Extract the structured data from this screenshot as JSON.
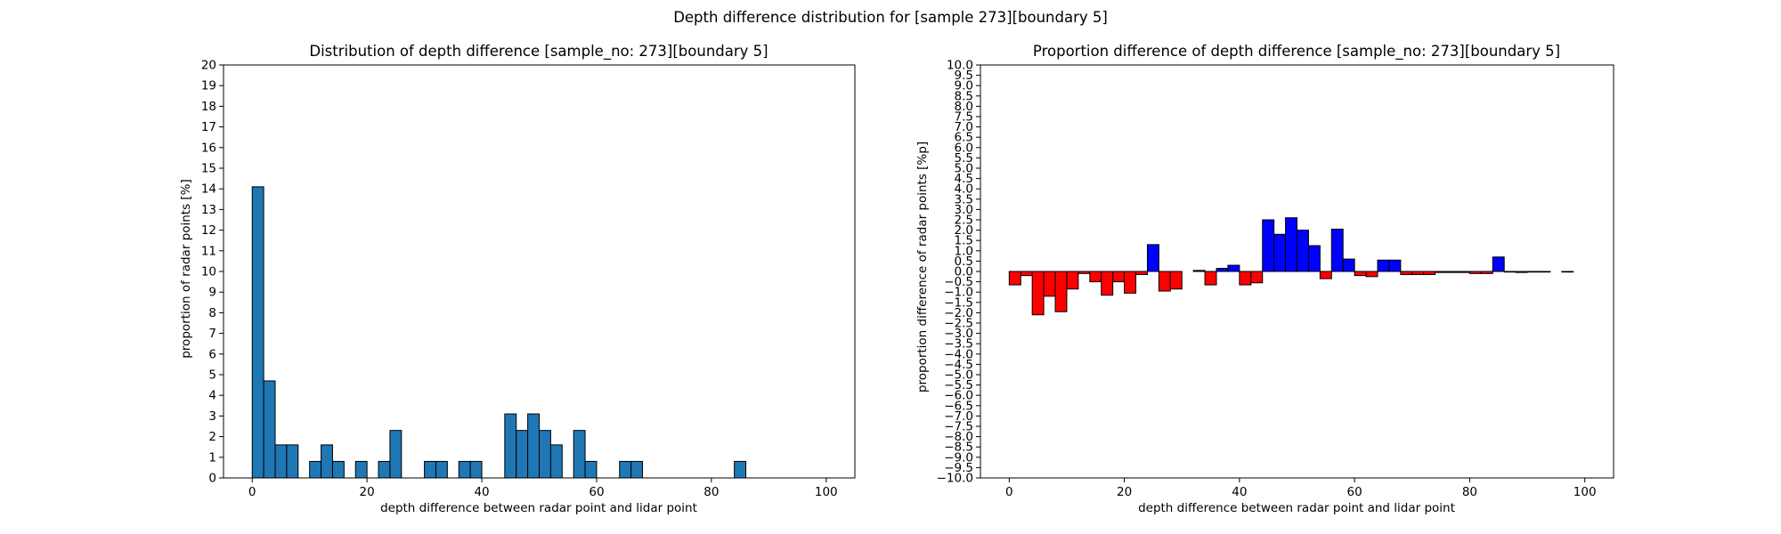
{
  "figure": {
    "suptitle": "Depth difference distribution for [sample 273][boundary 5]"
  },
  "chart_data": [
    {
      "type": "bar",
      "title": "Distribution of depth difference [sample_no: 273][boundary 5]",
      "xlabel": "depth difference between radar point and lidar point",
      "ylabel": "proportion of radar points [%]",
      "xlim": [
        -5,
        105
      ],
      "ylim": [
        0,
        20
      ],
      "x_ticks": [
        0,
        20,
        40,
        60,
        80,
        100
      ],
      "y_ticks": [
        0,
        1,
        2,
        3,
        4,
        5,
        6,
        7,
        8,
        9,
        10,
        11,
        12,
        13,
        14,
        15,
        16,
        17,
        18,
        19,
        20
      ],
      "bin_width": 2,
      "bin_start": 0,
      "bar_color": "#1f77b4",
      "values": [
        14.1,
        4.7,
        1.6,
        1.6,
        0,
        0.8,
        1.6,
        0.8,
        0,
        0.8,
        0,
        0.8,
        2.3,
        0,
        0,
        0.8,
        0.8,
        0,
        0.8,
        0.8,
        0,
        0,
        3.1,
        2.3,
        3.1,
        2.3,
        1.6,
        0,
        2.3,
        0.8,
        0,
        0,
        0.8,
        0.8,
        0,
        0,
        0,
        0,
        0,
        0,
        0,
        0,
        0.8,
        0,
        0,
        0,
        0,
        0,
        0,
        0
      ]
    },
    {
      "type": "bar",
      "title": "Proportion difference of depth difference [sample_no: 273][boundary 5]",
      "xlabel": "depth difference between radar point and lidar point",
      "ylabel": "proportion difference of radar points [%p]",
      "xlim": [
        -5,
        105
      ],
      "ylim": [
        -10,
        10
      ],
      "x_ticks": [
        0,
        20,
        40,
        60,
        80,
        100
      ],
      "y_ticks": [
        -10,
        -9.5,
        -9,
        -8.5,
        -8,
        -7.5,
        -7,
        -6.5,
        -6,
        -5.5,
        -5,
        -4.5,
        -4,
        -3.5,
        -3,
        -2.5,
        -2,
        -1.5,
        -1,
        -0.5,
        0,
        0.5,
        1,
        1.5,
        2,
        2.5,
        3,
        3.5,
        4,
        4.5,
        5,
        5.5,
        6,
        6.5,
        7,
        7.5,
        8,
        8.5,
        9,
        9.5,
        10
      ],
      "bin_width": 2,
      "bin_start": 0,
      "positive_color": "#0000ff",
      "negative_color": "#ff0000",
      "values": [
        -0.65,
        -0.2,
        -2.1,
        -1.2,
        -1.95,
        -0.85,
        -0.1,
        -0.5,
        -1.15,
        -0.5,
        -1.05,
        -0.15,
        1.3,
        -0.95,
        -0.85,
        0,
        0.05,
        -0.65,
        0.15,
        0.3,
        -0.65,
        -0.55,
        2.5,
        1.8,
        2.6,
        2.0,
        1.25,
        -0.35,
        2.05,
        0.6,
        -0.2,
        -0.25,
        0.55,
        0.55,
        -0.15,
        -0.15,
        -0.15,
        -0.05,
        -0.05,
        -0.05,
        -0.1,
        -0.1,
        0.7,
        -0.03,
        -0.05,
        -0.03,
        -0.03,
        0,
        -0.03,
        0
      ]
    }
  ]
}
